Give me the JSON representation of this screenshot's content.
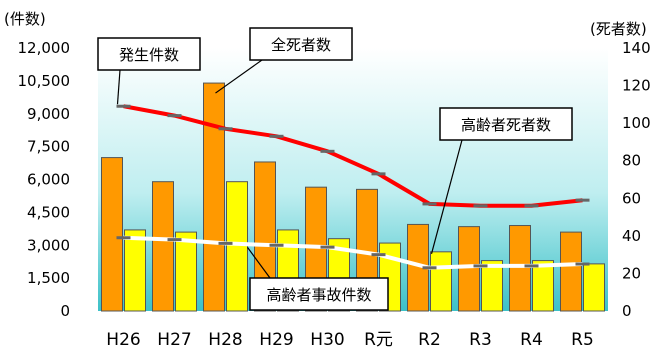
{
  "chart_data": {
    "type": "bar+line",
    "categories": [
      "H26",
      "H27",
      "H28",
      "H29",
      "H30",
      "R元",
      "R2",
      "R3",
      "R4",
      "R5"
    ],
    "y_left": {
      "unit_label": "(件数)",
      "ylim": [
        0,
        12000
      ],
      "ticks": [
        "0",
        "1,500",
        "3,000",
        "4,500",
        "6,000",
        "7,500",
        "9,000",
        "10,500",
        "12,000"
      ]
    },
    "y_right": {
      "unit_label": "(死者数)",
      "ylim": [
        0,
        140
      ],
      "ticks": [
        "0",
        "20",
        "40",
        "60",
        "80",
        "100",
        "120",
        "140"
      ]
    },
    "series": [
      {
        "name": "発生件数",
        "kind": "bar",
        "axis": "left",
        "color": "#ff9900",
        "values": [
          7000,
          5900,
          10400,
          6800,
          5650,
          5550,
          3950,
          3850,
          3900,
          3600
        ]
      },
      {
        "name": "高齢者事故件数",
        "kind": "bar",
        "axis": "left",
        "color": "#ffff00",
        "values": [
          3700,
          3600,
          5900,
          3700,
          3300,
          3100,
          2700,
          2300,
          2300,
          2150
        ]
      },
      {
        "name": "全死者数",
        "kind": "line",
        "axis": "right",
        "color": "#ff0000",
        "values": [
          109,
          104,
          97,
          93,
          85,
          73,
          57,
          56,
          56,
          59
        ]
      },
      {
        "name": "高齢者死者数",
        "kind": "line",
        "axis": "right",
        "color": "#ffffff",
        "values": [
          39,
          38,
          36,
          35,
          34,
          30,
          23,
          24,
          24,
          25
        ]
      }
    ],
    "grid": false,
    "background": "#3cc1c8"
  }
}
